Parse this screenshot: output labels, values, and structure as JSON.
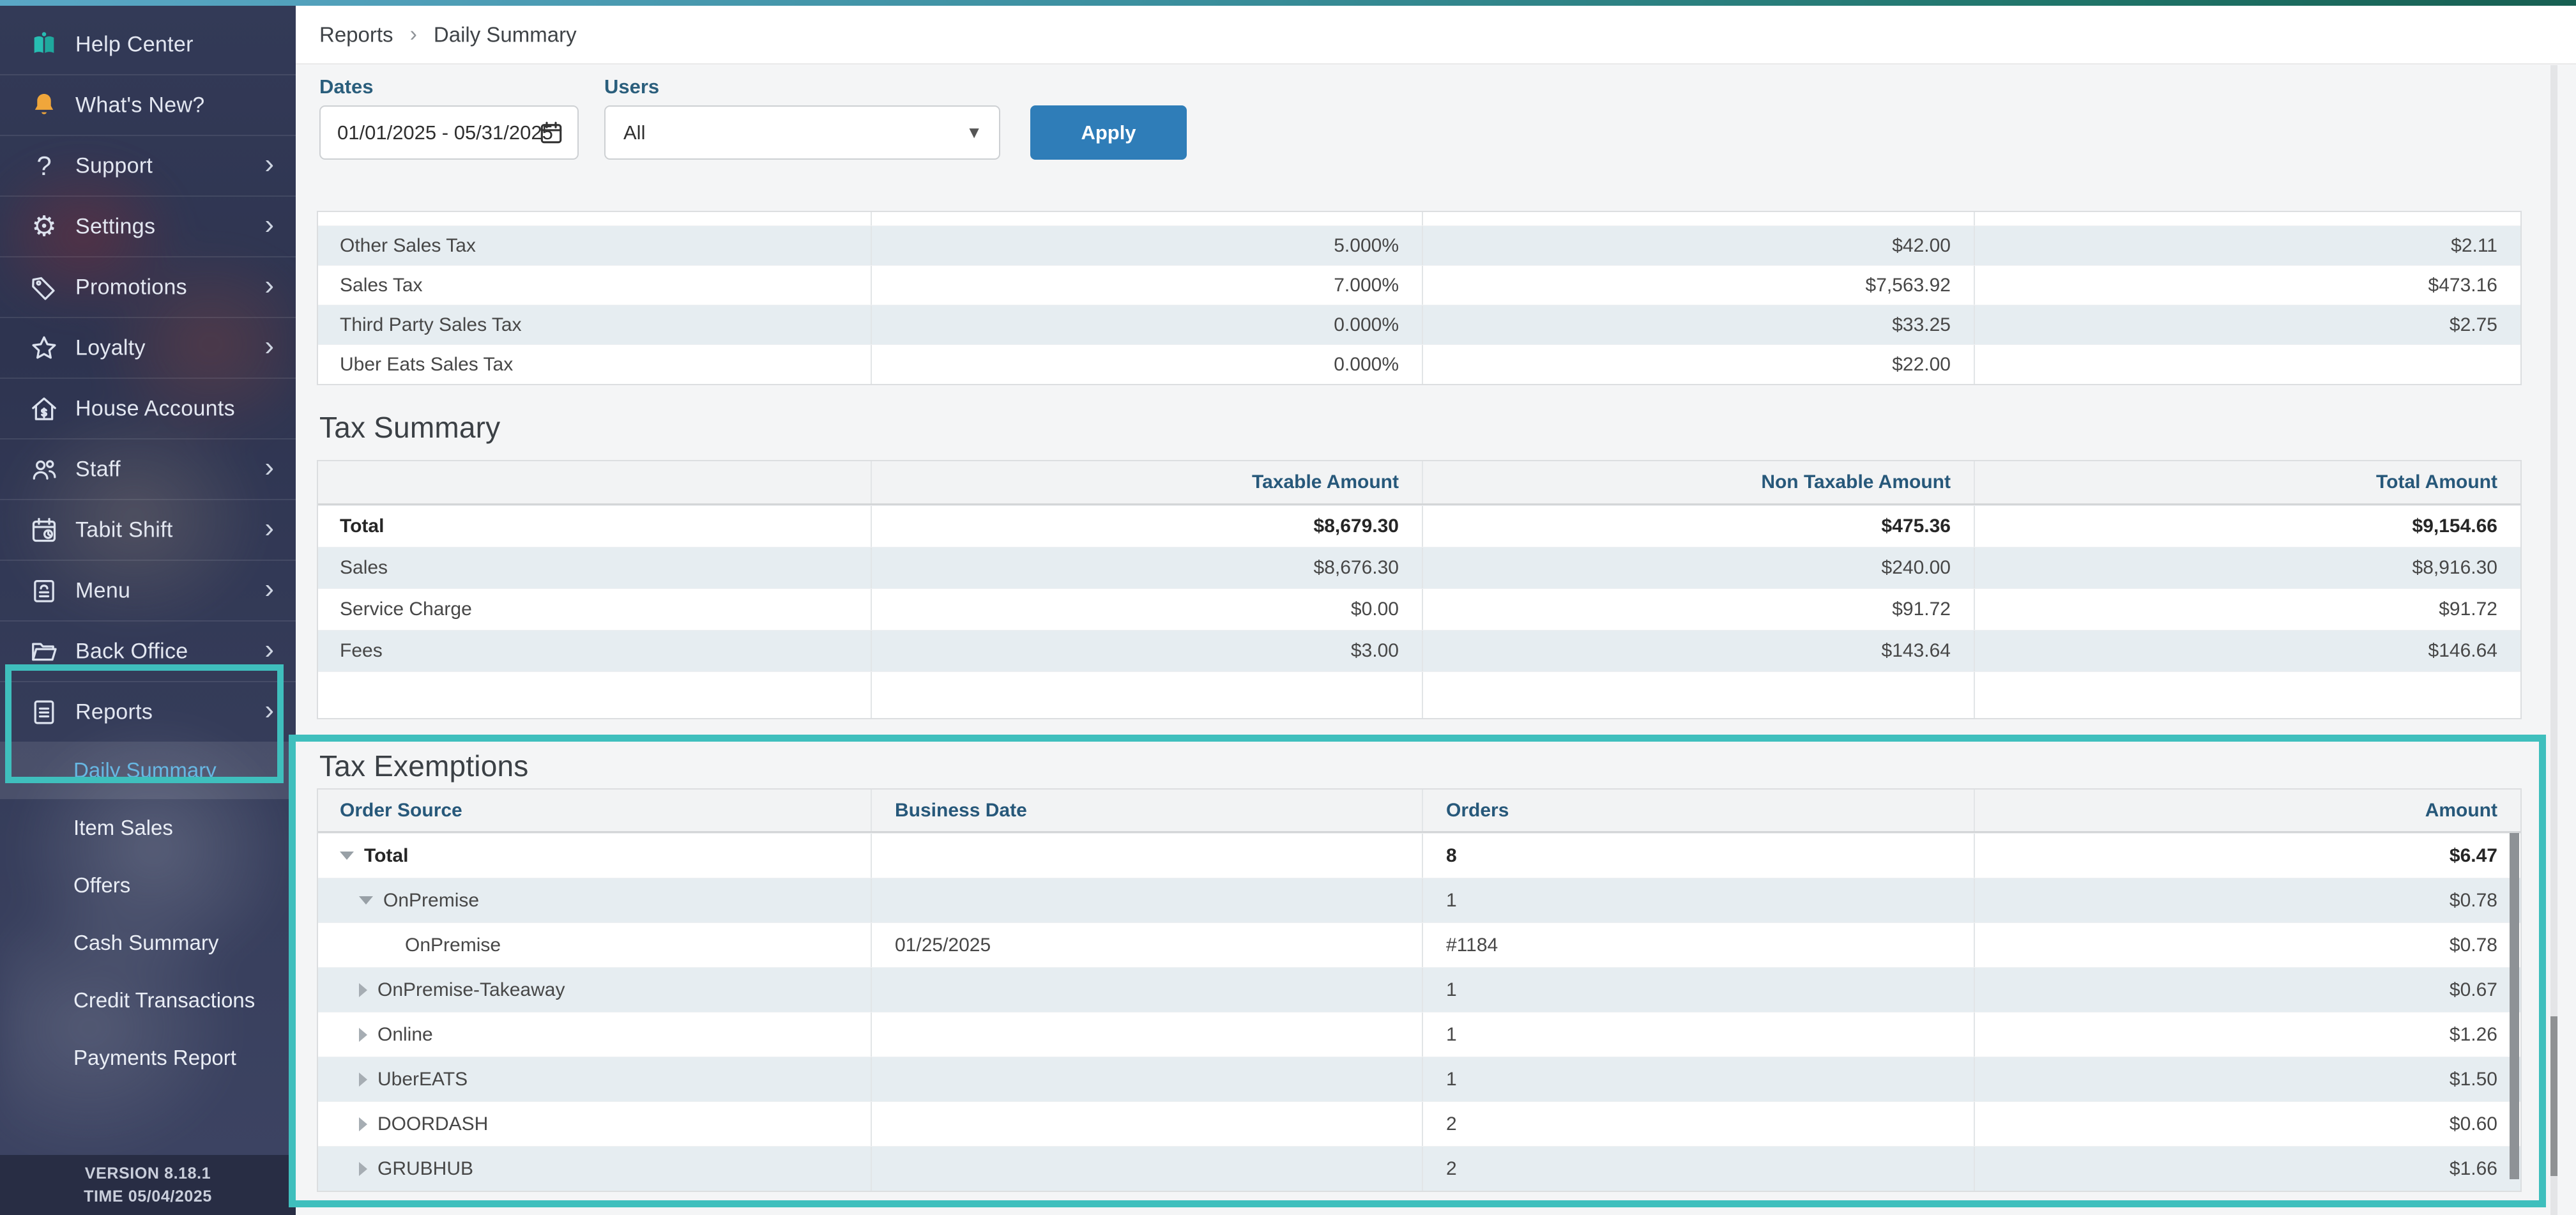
{
  "colors": {
    "highlight": "#3fbfbd",
    "apply_button": "#2f7db8",
    "active_nav": "#67b7e3",
    "shaded_row": "#e6edf1",
    "header_text": "#27587a",
    "bell": "#f0a63b",
    "help_book": "#27bdb2"
  },
  "sidebar": {
    "items": [
      {
        "label": "Help Center",
        "icon": "help-book-icon",
        "chevron": false
      },
      {
        "label": "What's New?",
        "icon": "bell-icon",
        "chevron": false
      },
      {
        "label": "Support",
        "icon": "question-icon",
        "chevron": true
      },
      {
        "label": "Settings",
        "icon": "gear-icon",
        "chevron": true
      },
      {
        "label": "Promotions",
        "icon": "tag-icon",
        "chevron": true
      },
      {
        "label": "Loyalty",
        "icon": "star-icon",
        "chevron": true
      },
      {
        "label": "House Accounts",
        "icon": "house-dollar-icon",
        "chevron": false
      },
      {
        "label": "Staff",
        "icon": "people-icon",
        "chevron": true
      },
      {
        "label": "Tabit Shift",
        "icon": "calendar-clock-icon",
        "chevron": true
      },
      {
        "label": "Menu",
        "icon": "menu-board-icon",
        "chevron": true
      },
      {
        "label": "Back Office",
        "icon": "folder-icon",
        "chevron": true
      },
      {
        "label": "Reports",
        "icon": "report-doc-icon",
        "chevron": true
      }
    ],
    "subitems": [
      {
        "label": "Daily Summary",
        "active": true
      },
      {
        "label": "Item Sales",
        "active": false
      },
      {
        "label": "Offers",
        "active": false
      },
      {
        "label": "Cash Summary",
        "active": false
      },
      {
        "label": "Credit Transactions",
        "active": false
      },
      {
        "label": "Payments Report",
        "active": false
      }
    ],
    "version": "VERSION 8.18.1",
    "time": "TIME 05/04/2025"
  },
  "breadcrumb": {
    "parent": "Reports",
    "separator": "›",
    "current": "Daily Summary"
  },
  "filters": {
    "dates_label": "Dates",
    "dates_value": "01/01/2025 - 05/31/2025",
    "users_label": "Users",
    "users_value": "All",
    "apply_label": "Apply"
  },
  "tax_rates_table": {
    "rows": [
      {
        "name": "Other Sales Tax",
        "rate": "5.000%",
        "taxable": "$42.00",
        "tax": "$2.11"
      },
      {
        "name": "Sales Tax",
        "rate": "7.000%",
        "taxable": "$7,563.92",
        "tax": "$473.16"
      },
      {
        "name": "Third Party Sales Tax",
        "rate": "0.000%",
        "taxable": "$33.25",
        "tax": "$2.75"
      },
      {
        "name": "Uber Eats Sales Tax",
        "rate": "0.000%",
        "taxable": "$22.00",
        "tax": ""
      }
    ]
  },
  "tax_summary": {
    "title": "Tax Summary",
    "columns": [
      "",
      "Taxable Amount",
      "Non Taxable Amount",
      "Total Amount"
    ],
    "rows": [
      {
        "label": "Total",
        "values": [
          "$8,679.30",
          "$475.36",
          "$9,154.66"
        ],
        "bold": true
      },
      {
        "label": "Sales",
        "values": [
          "$8,676.30",
          "$240.00",
          "$8,916.30"
        ],
        "bold": false
      },
      {
        "label": "Service Charge",
        "values": [
          "$0.00",
          "$91.72",
          "$91.72"
        ],
        "bold": false
      },
      {
        "label": "Fees",
        "values": [
          "$3.00",
          "$143.64",
          "$146.64"
        ],
        "bold": false
      },
      {
        "label": "",
        "values": [
          "",
          "",
          ""
        ],
        "bold": false,
        "empty": true
      }
    ]
  },
  "tax_exemptions": {
    "title": "Tax Exemptions",
    "columns": [
      "Order Source",
      "Business Date",
      "Orders",
      "Amount"
    ],
    "rows": [
      {
        "label": "Total",
        "level": 0,
        "arrow": "expanded",
        "business_date": "",
        "orders": "8",
        "amount": "$6.47",
        "bold": true
      },
      {
        "label": "OnPremise",
        "level": 1,
        "arrow": "expanded",
        "business_date": "",
        "orders": "1",
        "amount": "$0.78",
        "bold": false
      },
      {
        "label": "OnPremise",
        "level": 2,
        "arrow": "none",
        "business_date": "01/25/2025",
        "orders": "#1184",
        "amount": "$0.78",
        "bold": false
      },
      {
        "label": "OnPremise-Takeaway",
        "level": 1,
        "arrow": "collapsed",
        "business_date": "",
        "orders": "1",
        "amount": "$0.67",
        "bold": false
      },
      {
        "label": "Online",
        "level": 1,
        "arrow": "collapsed",
        "business_date": "",
        "orders": "1",
        "amount": "$1.26",
        "bold": false
      },
      {
        "label": "UberEATS",
        "level": 1,
        "arrow": "collapsed",
        "business_date": "",
        "orders": "1",
        "amount": "$1.50",
        "bold": false
      },
      {
        "label": "DOORDASH",
        "level": 1,
        "arrow": "collapsed",
        "business_date": "",
        "orders": "2",
        "amount": "$0.60",
        "bold": false
      },
      {
        "label": "GRUBHUB",
        "level": 1,
        "arrow": "collapsed",
        "business_date": "",
        "orders": "2",
        "amount": "$1.66",
        "bold": false
      }
    ]
  }
}
